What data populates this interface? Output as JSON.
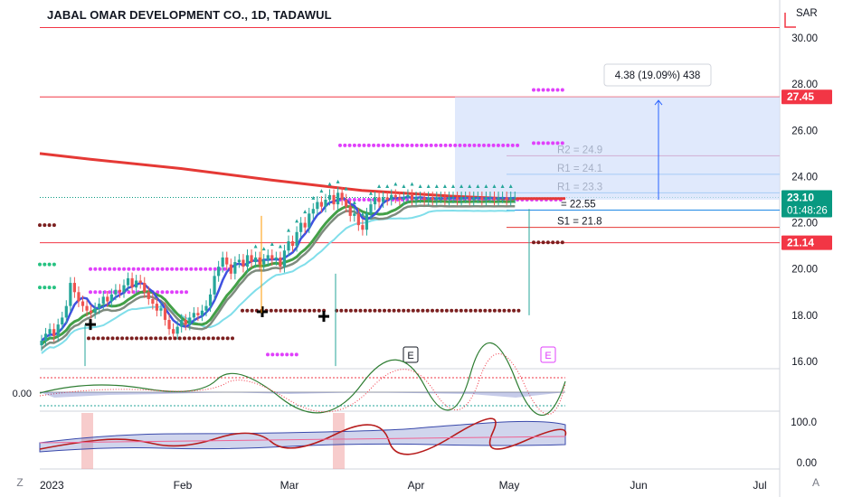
{
  "title": "JABAL OMAR DEVELOPMENT CO., 1D, TADAWUL",
  "currency": "SAR",
  "colors": {
    "up": "#26a69a",
    "down": "#ef5350",
    "ema200": "#e53935",
    "blue": "#3f51e0",
    "green": "#43a047",
    "pink": "#e040fb",
    "maroon": "#7b1f1f",
    "cyan": "#80deea",
    "sel": "#2962ff"
  },
  "chart_data": [
    {
      "type": "line",
      "panel": "price",
      "x_labels": [
        "2023",
        "Feb",
        "Mar",
        "Apr",
        "May",
        "Jun",
        "Jul"
      ],
      "y_ticks": [
        "30.00",
        "28.00",
        "26.00",
        "24.00",
        "22.00",
        "20.00",
        "18.00",
        "16.00"
      ],
      "ylim": [
        15.8,
        30.6
      ],
      "price_tags": [
        {
          "label": "27.45",
          "value": 27.45,
          "color": "#f23645"
        },
        {
          "label": "23.10",
          "sub": "01:48:26",
          "value": 23.1,
          "color": "#089981"
        },
        {
          "label": "21.14",
          "value": 21.14,
          "color": "#f23645"
        }
      ],
      "horizontal_levels": [
        {
          "label": "R2 = 24.9",
          "value": 24.9
        },
        {
          "label": "R1 = 24.1",
          "value": 24.1
        },
        {
          "label": "R1 = 23.3",
          "value": 23.3
        },
        {
          "label": "= 22.55",
          "value": 22.55
        },
        {
          "label": "S1 = 21.8",
          "value": 21.8
        }
      ],
      "measure_label": "4.38 (19.09%) 438",
      "event_labels": [
        "E",
        "E"
      ],
      "candles": {
        "days": [
          0,
          1,
          2,
          3,
          4,
          5,
          6,
          7,
          8,
          9,
          10,
          11,
          12,
          13,
          14,
          15,
          16,
          17,
          18,
          19,
          20,
          21,
          22,
          23,
          24,
          25,
          26,
          27,
          28,
          29,
          30,
          31,
          32,
          33,
          34,
          35,
          36,
          37,
          38,
          39,
          40,
          41,
          42,
          43,
          44,
          45,
          46,
          47,
          48,
          49,
          50,
          51,
          52,
          53,
          54,
          55,
          56,
          57,
          58,
          59,
          60,
          61,
          62,
          63,
          64,
          65,
          66,
          67,
          68,
          69,
          70,
          71,
          72,
          73,
          74,
          75,
          76,
          77,
          78,
          79,
          80,
          81,
          82,
          83,
          84,
          85,
          86,
          87,
          88,
          89,
          90,
          91,
          92,
          93,
          94,
          95,
          96,
          97,
          98,
          99,
          100,
          101,
          102,
          103,
          104,
          105,
          106,
          107,
          108,
          109,
          110,
          111,
          112,
          113,
          114,
          115
        ],
        "close": [
          16.9,
          17.2,
          17.4,
          17.1,
          17.6,
          17.9,
          18.4,
          19.4,
          19.0,
          18.6,
          18.4,
          18.2,
          18.1,
          18.3,
          18.5,
          18.8,
          18.6,
          18.9,
          19.1,
          19.0,
          19.3,
          19.6,
          19.2,
          19.5,
          19.4,
          19.0,
          18.7,
          18.5,
          18.2,
          18.3,
          17.8,
          17.4,
          17.2,
          17.5,
          17.8,
          17.6,
          17.9,
          18.1,
          18.0,
          18.2,
          18.4,
          18.9,
          19.7,
          20.1,
          20.5,
          20.2,
          19.8,
          20.3,
          20.4,
          20.1,
          20.6,
          20.3,
          20.5,
          20.2,
          20.4,
          20.6,
          20.4,
          20.5,
          20.1,
          20.8,
          21.2,
          21.0,
          21.6,
          22.0,
          21.8,
          22.4,
          22.6,
          22.9,
          22.7,
          23.0,
          23.2,
          22.8,
          23.3,
          23.0,
          22.7,
          22.3,
          22.4,
          21.9,
          21.7,
          22.4,
          22.8,
          23.1,
          22.9,
          23.1,
          23.0,
          23.2,
          23.1,
          23.0,
          23.1,
          23.2,
          23.0,
          23.1,
          23.1,
          23.0,
          23.1,
          23.0,
          23.1,
          23.1,
          23.0,
          23.1,
          23.1,
          23.0,
          23.1,
          23.1,
          23.0,
          23.1,
          23.1,
          23.0,
          23.1,
          23.1,
          23.0,
          23.1,
          23.1,
          23.0,
          23.1,
          23.1
        ]
      }
    },
    {
      "type": "line",
      "panel": "oscillator-1",
      "y_ticks": [
        "0.00"
      ]
    },
    {
      "type": "area",
      "panel": "oscillator-2",
      "y_ticks": [
        "100.0",
        "0.00"
      ]
    }
  ],
  "footer": {
    "left_button": "Z",
    "right_button": "A"
  }
}
